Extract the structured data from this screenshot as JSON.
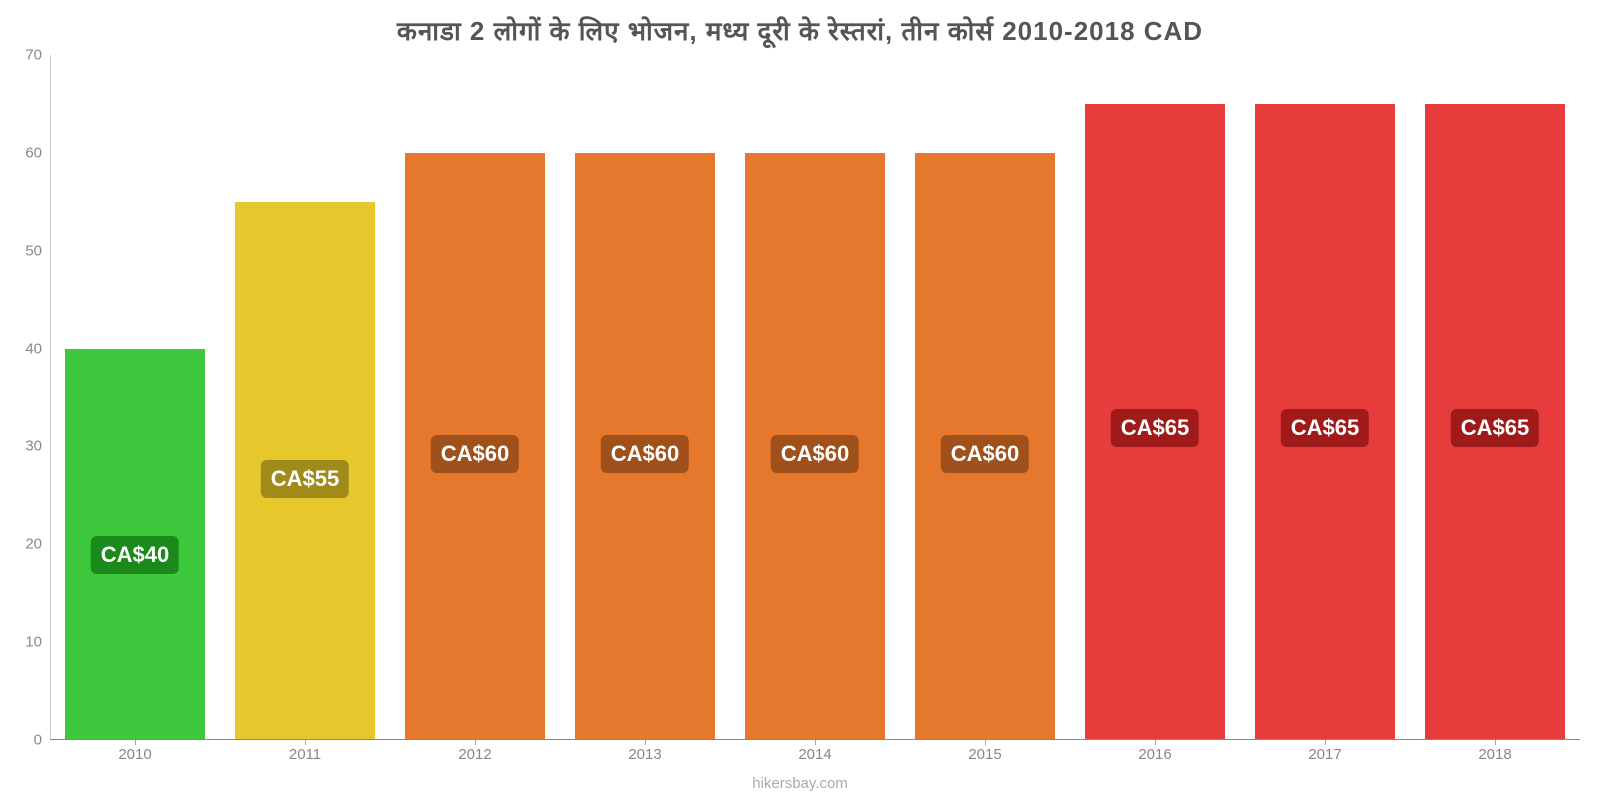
{
  "chart": {
    "type": "bar",
    "title": "कनाडा 2 लोगों के लिए भोजन, मध्य दूरी के रेस्तरां, तीन कोर्स 2010-2018 CAD",
    "title_fontsize": 26,
    "title_color": "#555555",
    "categories": [
      "2010",
      "2011",
      "2012",
      "2013",
      "2014",
      "2015",
      "2016",
      "2017",
      "2018"
    ],
    "values": [
      40,
      55,
      60,
      60,
      60,
      60,
      65,
      65,
      65
    ],
    "value_labels": [
      "CA$40",
      "CA$55",
      "CA$60",
      "CA$60",
      "CA$60",
      "CA$60",
      "CA$65",
      "CA$65",
      "CA$65"
    ],
    "bar_colors": [
      "#3ec83e",
      "#e6c82d",
      "#e6782d",
      "#e6782d",
      "#e6782d",
      "#e6782d",
      "#e63c3c",
      "#e63c3c",
      "#e63c3c"
    ],
    "label_bg_colors": [
      "#1a8a1a",
      "#a08a1a",
      "#a0501a",
      "#a0501a",
      "#a0501a",
      "#a0501a",
      "#a01a1a",
      "#a01a1a",
      "#a01a1a"
    ],
    "label_fontsize": 22,
    "ylim": [
      0,
      70
    ],
    "yticks": [
      0,
      10,
      20,
      30,
      40,
      50,
      60,
      70
    ],
    "axis_label_fontsize": 15,
    "axis_label_color": "#888888",
    "background_color": "#ffffff",
    "bar_width_ratio": 0.82,
    "source": "hikersbay.com"
  }
}
